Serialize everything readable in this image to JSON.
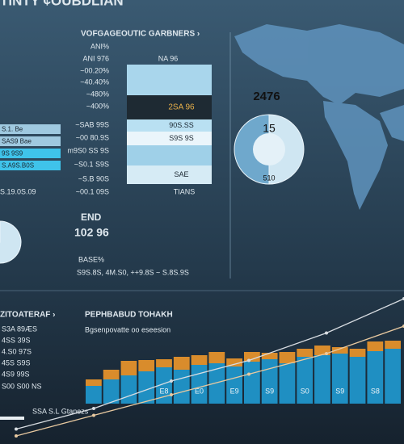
{
  "header": {
    "title": "TINTY ¢OUBDLIAN",
    "subtitle": "VOFGAGEOUTIC GARBNERS ›"
  },
  "top_list": [
    "ANI%",
    "ANI 976",
    "~00.20%",
    "~40.40%",
    "~480%",
    "~400%"
  ],
  "mid_list": [
    "~SAB 99S",
    "~00 80.9S",
    "m9S0 SS 9S",
    "~S0.1 S9S",
    "~S.B 90S",
    "~00.1 09S"
  ],
  "left_note": "S.19.0S.09",
  "center": {
    "top": "NA 96",
    "bottom": "TIANS"
  },
  "donut": {
    "value": "2476"
  },
  "gauge": {
    "title": "END",
    "value": "102 96"
  },
  "base": {
    "title": "BASE%",
    "line": "S9S.8S, 4M.S0, ++9.8S ~ S.8S.9S"
  },
  "bottom": {
    "title": "ZITOATERAF ›",
    "chart_title": "PEPHBABUD TOHAKH",
    "subtitle": "Bgsenpovatte oo eseesion",
    "list": [
      "S3A 89ÆS",
      "4SS 39S",
      "4.S0 97S",
      "45S S9S",
      "4S9 99S",
      "S00 S00 NS"
    ],
    "footer": "SSA  S.L Gtanezs"
  },
  "chart_data": [
    {
      "type": "bar",
      "orientation": "horizontal",
      "categories": [
        "S.1. Be",
        "SAS9 Bae",
        "9S 9S9",
        "S.A9S.B0S"
      ],
      "values": [
        75,
        75,
        75,
        75
      ],
      "xlim": [
        0,
        75
      ],
      "colors": [
        "#9fc9e0",
        "#9fc9e0",
        "#3fc3ea",
        "#3fc3ea"
      ]
    },
    {
      "type": "stack",
      "values": [
        23,
        25,
        17,
        15,
        30,
        38
      ],
      "labels": [
        "SAE",
        null,
        "S9S 9S",
        "90S.SS",
        "2SA 96",
        null
      ],
      "ylim": [
        0,
        148
      ],
      "colors": [
        "#d6ebf5",
        "#9fd0e8",
        "#eaf5fb",
        "#b9e0f2",
        "#1e2a33",
        "#a9d6ec"
      ]
    },
    {
      "type": "pie",
      "values": [
        50,
        50
      ],
      "labels": [
        "15",
        "510"
      ],
      "colors": [
        "#cfe6f2",
        "#6fa8cc"
      ]
    },
    {
      "type": "pie",
      "values": [
        60,
        40
      ],
      "colors": [
        "#cfe6f2",
        "#6fa8cc"
      ]
    },
    {
      "type": "bar",
      "stacked": true,
      "categories": [
        null,
        null,
        null,
        null,
        "E8",
        null,
        "E0",
        null,
        "E9",
        null,
        "S9",
        null,
        "S0",
        null,
        "S9",
        null,
        "S8",
        null
      ],
      "ylim": [
        0,
        100
      ],
      "series": [
        {
          "color": "#1f8fc2",
          "values": [
            22,
            30,
            35,
            40,
            45,
            42,
            48,
            50,
            46,
            52,
            55,
            50,
            58,
            60,
            62,
            58,
            65,
            68
          ]
        },
        {
          "color": "#d98c2c",
          "values": [
            8,
            12,
            18,
            14,
            10,
            16,
            12,
            14,
            10,
            12,
            8,
            14,
            10,
            12,
            8,
            10,
            12,
            10
          ]
        }
      ]
    },
    {
      "type": "line",
      "x": [
        0,
        20,
        40,
        60,
        80,
        100
      ],
      "xlim": [
        0,
        100
      ],
      "ylim": [
        0,
        100
      ],
      "series": [
        {
          "color": "#d8dde2",
          "values": [
            5,
            20,
            40,
            55,
            75,
            100
          ]
        },
        {
          "color": "#e8c9a0",
          "values": [
            0,
            15,
            30,
            45,
            60,
            80
          ]
        }
      ]
    }
  ]
}
